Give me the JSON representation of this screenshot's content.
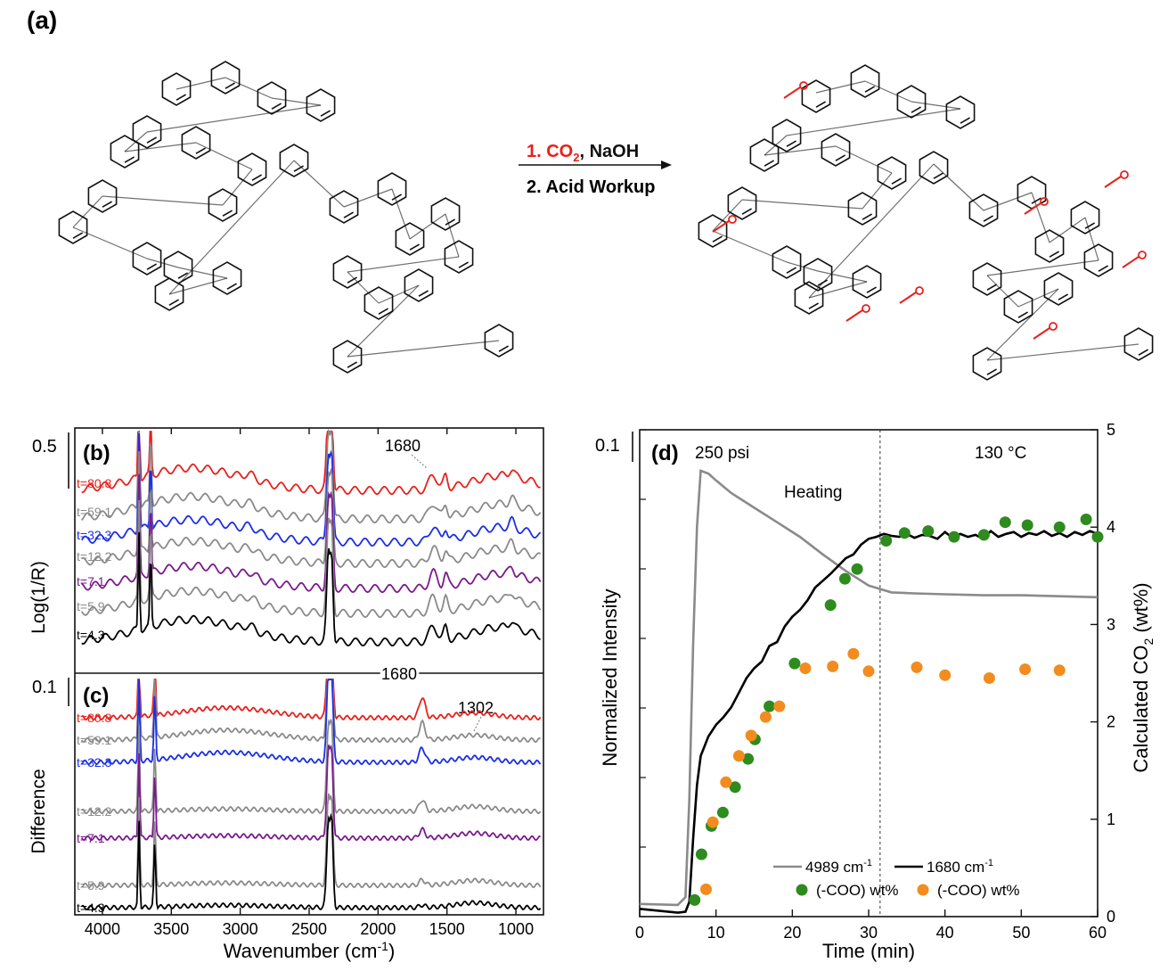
{
  "scheme": {
    "panel_label": "(a)",
    "step1_reagent": "1. CO",
    "step1_subscript": "2",
    "step1_rest": ", NaOH",
    "step2": "2. Acid Workup"
  },
  "panel_b": {
    "label": "(b)",
    "ylabel": "Log(1/R)",
    "scale_label": "0.5",
    "annotation": "1680",
    "traces": [
      {
        "label": "t=80.8",
        "color": "#e8201c"
      },
      {
        "label": "t=59.1",
        "color": "#8a8a8a"
      },
      {
        "label": "t=32.3",
        "color": "#1a2ee8"
      },
      {
        "label": "t=12.2",
        "color": "#8a8a8a"
      },
      {
        "label": "t=7.1",
        "color": "#7a1a8c"
      },
      {
        "label": "t=5.9",
        "color": "#8a8a8a"
      },
      {
        "label": "t=4.3",
        "color": "#000000"
      }
    ]
  },
  "panel_c": {
    "label": "(c)",
    "ylabel": "Difference",
    "scale_label": "0.1",
    "annotation_top": "1680",
    "annotation": "1302",
    "traces": [
      {
        "label": "t=80.8",
        "color": "#e8201c"
      },
      {
        "label": "t=59.1",
        "color": "#8a8a8a"
      },
      {
        "label": "t=32.3",
        "color": "#1a2ee8"
      },
      {
        "label": "t=12.2",
        "color": "#8a8a8a"
      },
      {
        "label": "t=7.1",
        "color": "#7a1a8c"
      },
      {
        "label": "t=5.9",
        "color": "#8a8a8a"
      },
      {
        "label": "t=4.3",
        "color": "#000000"
      }
    ]
  },
  "spectra_axis": {
    "xlabel": "Wavenumber (cm",
    "xlabel_sup": "-1",
    "xlabel_end": ")",
    "xticks": [
      "4000",
      "3500",
      "3000",
      "2500",
      "2000",
      "1500",
      "1000"
    ]
  },
  "chart_data": {
    "type": "line",
    "label": "(d)",
    "xlabel": "Time (min)",
    "ylabel": "Normalized Intensity",
    "y2label": "Calculated CO",
    "y2label_sub": "2",
    "y2label_end": " (wt%)",
    "scale_label": "0.1",
    "xlim": [
      0,
      60
    ],
    "y2lim": [
      0,
      5
    ],
    "xticks": [
      "0",
      "10",
      "20",
      "30",
      "40",
      "50",
      "60"
    ],
    "y2ticks": [
      "0",
      "1",
      "2",
      "3",
      "4",
      "5"
    ],
    "annotations": {
      "pressure": "250 psi",
      "heating": "Heating",
      "temperature": "130 °C",
      "divider_x": 31.5
    },
    "legend": [
      {
        "text": "4989 cm",
        "sup": "-1",
        "kind": "line",
        "color": "#8a8a8a"
      },
      {
        "text": "1680 cm",
        "sup": "-1",
        "kind": "line",
        "color": "#000000"
      },
      {
        "text": "(-COO) wt%",
        "kind": "dot",
        "color": "#2e8b1e"
      },
      {
        "text": "(-COO) wt%",
        "kind": "dot",
        "color": "#f28c1e"
      }
    ],
    "series": [
      {
        "color": "#8a8a8a",
        "kind": "line",
        "x": [
          0,
          5,
          6,
          6.5,
          7,
          7.5,
          8,
          9,
          10,
          12,
          15,
          18,
          21,
          24,
          27,
          30,
          33,
          36,
          40,
          45,
          50,
          55,
          60
        ],
        "y": [
          0.13,
          0.12,
          0.2,
          1.2,
          2.8,
          4.0,
          4.58,
          4.55,
          4.48,
          4.35,
          4.2,
          4.05,
          3.9,
          3.72,
          3.55,
          3.4,
          3.33,
          3.32,
          3.31,
          3.3,
          3.3,
          3.29,
          3.28
        ]
      },
      {
        "color": "#000000",
        "kind": "line",
        "x": [
          0,
          5,
          6,
          6.5,
          7,
          7.5,
          8,
          9,
          10,
          11,
          12,
          13,
          14,
          15,
          16,
          17,
          18,
          19,
          20,
          21,
          22,
          23,
          24,
          25,
          26,
          27,
          28,
          29,
          30,
          31,
          32,
          33,
          34,
          35,
          36,
          37,
          38,
          39,
          40,
          41,
          42,
          43,
          44,
          45,
          46,
          47,
          48,
          49,
          50,
          51,
          52,
          53,
          54,
          55,
          56,
          57,
          58,
          59,
          60
        ],
        "y": [
          0.08,
          0.04,
          0.05,
          0.15,
          0.8,
          1.35,
          1.65,
          1.85,
          1.97,
          2.05,
          2.15,
          2.3,
          2.45,
          2.55,
          2.62,
          2.78,
          2.82,
          2.98,
          3.08,
          3.15,
          3.25,
          3.38,
          3.45,
          3.52,
          3.6,
          3.68,
          3.72,
          3.82,
          3.88,
          3.9,
          3.93,
          3.91,
          3.9,
          3.93,
          3.89,
          3.92,
          3.91,
          3.88,
          3.95,
          3.89,
          3.93,
          3.9,
          3.92,
          3.88,
          3.96,
          3.9,
          3.93,
          3.95,
          3.9,
          3.94,
          3.92,
          3.96,
          3.91,
          3.94,
          3.9,
          3.95,
          3.92,
          3.96,
          3.93
        ]
      },
      {
        "color": "#2e8b1e",
        "kind": "dot",
        "x": [
          7.2,
          8.1,
          9.4,
          10.9,
          12.5,
          14.2,
          15.1,
          17.0,
          20.3,
          25.0,
          26.9,
          28.5,
          32.3,
          34.7,
          37.8,
          41.2,
          45.1,
          47.9,
          50.8,
          55.0,
          58.5,
          60.0
        ],
        "y": [
          0.17,
          0.64,
          0.93,
          1.07,
          1.33,
          1.62,
          1.82,
          2.16,
          2.6,
          3.2,
          3.47,
          3.57,
          3.86,
          3.94,
          3.96,
          3.9,
          3.92,
          4.05,
          4.02,
          4.0,
          4.08,
          3.9
        ]
      },
      {
        "color": "#f28c1e",
        "kind": "dot",
        "x": [
          8.7,
          9.6,
          11.3,
          13.0,
          14.6,
          16.5,
          18.3,
          21.7,
          25.3,
          28.0,
          30.0,
          36.3,
          40.0,
          45.8,
          50.5,
          55.0
        ],
        "y": [
          0.28,
          0.97,
          1.38,
          1.65,
          1.86,
          2.05,
          2.16,
          2.55,
          2.57,
          2.7,
          2.52,
          2.56,
          2.48,
          2.45,
          2.54,
          2.53
        ]
      }
    ]
  }
}
